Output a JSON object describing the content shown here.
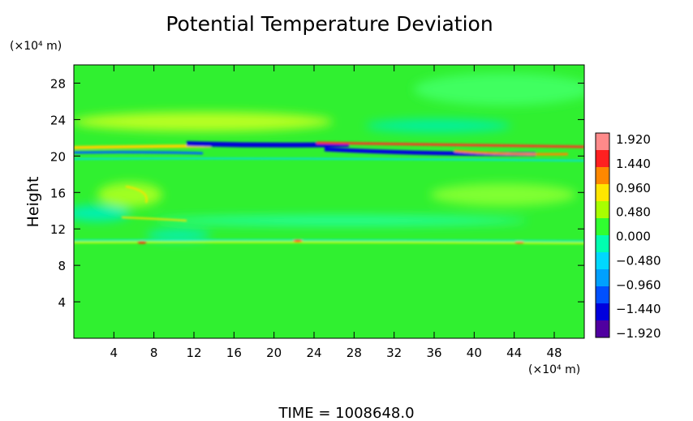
{
  "chart_data": {
    "type": "heatmap",
    "title": "Potential Temperature Deviation",
    "ylabel": "Height",
    "x_unit": "(×10⁴ m)",
    "y_unit": "(×10⁴ m)",
    "xlim": [
      0,
      51
    ],
    "ylim": [
      0,
      30
    ],
    "x_ticks": [
      4,
      8,
      12,
      16,
      20,
      24,
      28,
      32,
      36,
      40,
      44,
      48
    ],
    "y_ticks": [
      4,
      8,
      12,
      16,
      20,
      24,
      28
    ],
    "grid": false,
    "colorbar": {
      "position": "right",
      "range": [
        -1.92,
        1.92
      ],
      "labels": [
        "1.920",
        "1.440",
        "0.960",
        "0.480",
        "0.000",
        "-0.480",
        "-0.960",
        "-1.440",
        "-1.920"
      ],
      "colors": [
        "#ff8a8a",
        "#ff2020",
        "#ff8800",
        "#ffe600",
        "#a8ff00",
        "#30ff30",
        "#00ffb0",
        "#00d8ff",
        "#00a0ff",
        "#0050ff",
        "#0000dd",
        "#5000a0"
      ]
    },
    "features": [
      {
        "description": "warm layer",
        "x": [
          5,
          30
        ],
        "y": 23.8,
        "value": 0.7
      },
      {
        "description": "cold band",
        "x": [
          14,
          30
        ],
        "y": 21.3,
        "value": -1.6
      },
      {
        "description": "cold band",
        "x": [
          33,
          47
        ],
        "y": 20.3,
        "value": -1.7
      },
      {
        "description": "warm band",
        "x": [
          28,
          50
        ],
        "y": 21.0,
        "value": 1.4
      },
      {
        "description": "cool layer",
        "x": [
          28,
          42
        ],
        "y": 23.5,
        "value": -0.5
      },
      {
        "description": "cool patch",
        "x": [
          2,
          8
        ],
        "y": 12.5,
        "value": -0.5
      },
      {
        "description": "warm streak",
        "x": [
          0,
          51
        ],
        "y": 10.5,
        "value": 0.5
      }
    ]
  },
  "footer": {
    "time": "TIME = 1008648.0"
  }
}
